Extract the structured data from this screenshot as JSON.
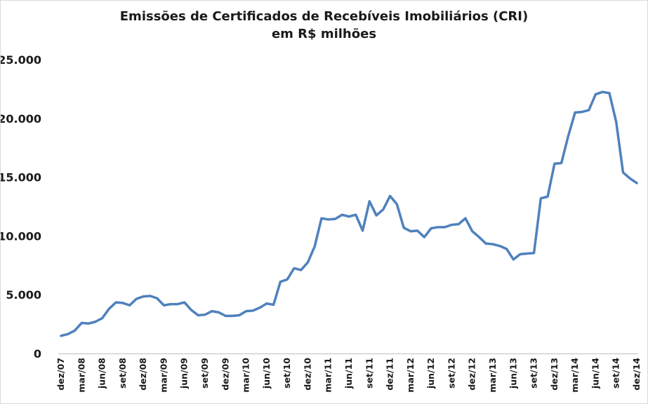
{
  "chart_data": {
    "type": "line",
    "title": "Emissões de Certificados de Recebíveis Imobiliários (CRI)",
    "subtitle": "em R$ milhões",
    "xlabel": "",
    "ylabel": "",
    "ylim": [
      0,
      25000
    ],
    "y_ticks": [
      0,
      5000,
      10000,
      15000,
      20000,
      25000
    ],
    "y_tick_labels": [
      "0",
      "5.000",
      "10.000",
      "15.000",
      "20.000",
      "25.000"
    ],
    "x_tick_labels": [
      "dez/07",
      "mar/08",
      "jun/08",
      "set/08",
      "dez/08",
      "mar/09",
      "jun/09",
      "set/09",
      "dez/09",
      "mar/10",
      "jun/10",
      "set/10",
      "dez/10",
      "mar/11",
      "jun/11",
      "set/11",
      "dez/11",
      "mar/12",
      "jun/12",
      "set/12",
      "dez/12",
      "mar/13",
      "jun/13",
      "set/13",
      "dez/13",
      "mar/14",
      "jun/14",
      "set/14",
      "dez/14"
    ],
    "grid": false,
    "legend": "none",
    "series_color": "#4f81bd",
    "series": [
      {
        "x": [
          "dez/07",
          "jan/08",
          "fev/08",
          "mar/08",
          "abr/08",
          "mai/08",
          "jun/08",
          "jul/08",
          "ago/08",
          "set/08",
          "out/08",
          "nov/08",
          "dez/08",
          "jan/09",
          "fev/09",
          "mar/09",
          "abr/09",
          "mai/09",
          "jun/09",
          "jul/09",
          "ago/09",
          "set/09",
          "out/09",
          "nov/09",
          "dez/09",
          "jan/10",
          "fev/10",
          "mar/10",
          "abr/10",
          "mai/10",
          "jun/10",
          "jul/10",
          "ago/10",
          "set/10",
          "out/10",
          "nov/10",
          "dez/10",
          "jan/11",
          "fev/11",
          "mar/11",
          "abr/11",
          "mai/11",
          "jun/11",
          "jul/11",
          "ago/11",
          "set/11",
          "out/11",
          "nov/11",
          "dez/11",
          "jan/12",
          "fev/12",
          "mar/12",
          "abr/12",
          "mai/12",
          "jun/12",
          "jul/12",
          "ago/12",
          "set/12",
          "out/12",
          "nov/12",
          "dez/12",
          "jan/13",
          "fev/13",
          "mar/13",
          "abr/13",
          "mai/13",
          "jun/13",
          "jul/13",
          "ago/13",
          "set/13",
          "out/13",
          "nov/13",
          "dez/13",
          "jan/14",
          "fev/14",
          "mar/14",
          "abr/14",
          "mai/14",
          "jun/14",
          "jul/14",
          "ago/14",
          "set/14",
          "out/14",
          "nov/14",
          "dez/14"
        ],
        "values": [
          1500,
          1650,
          1950,
          2600,
          2550,
          2700,
          3000,
          3800,
          4350,
          4300,
          4100,
          4650,
          4850,
          4900,
          4700,
          4100,
          4200,
          4200,
          4350,
          3700,
          3250,
          3300,
          3600,
          3500,
          3200,
          3200,
          3250,
          3600,
          3650,
          3900,
          4250,
          4150,
          6100,
          6300,
          7250,
          7100,
          7750,
          9100,
          11500,
          11400,
          11450,
          11800,
          11650,
          11800,
          10450,
          12950,
          11750,
          12250,
          13400,
          12700,
          10700,
          10400,
          10450,
          9900,
          10650,
          10750,
          10750,
          10950,
          11000,
          11500,
          10400,
          9900,
          9350,
          9300,
          9150,
          8900,
          8000,
          8450,
          8500,
          8550,
          13200,
          13350,
          16150,
          16200,
          18500,
          20500,
          20550,
          20700,
          22050,
          22250,
          22150,
          19700,
          15400,
          14900,
          14500
        ]
      }
    ]
  }
}
